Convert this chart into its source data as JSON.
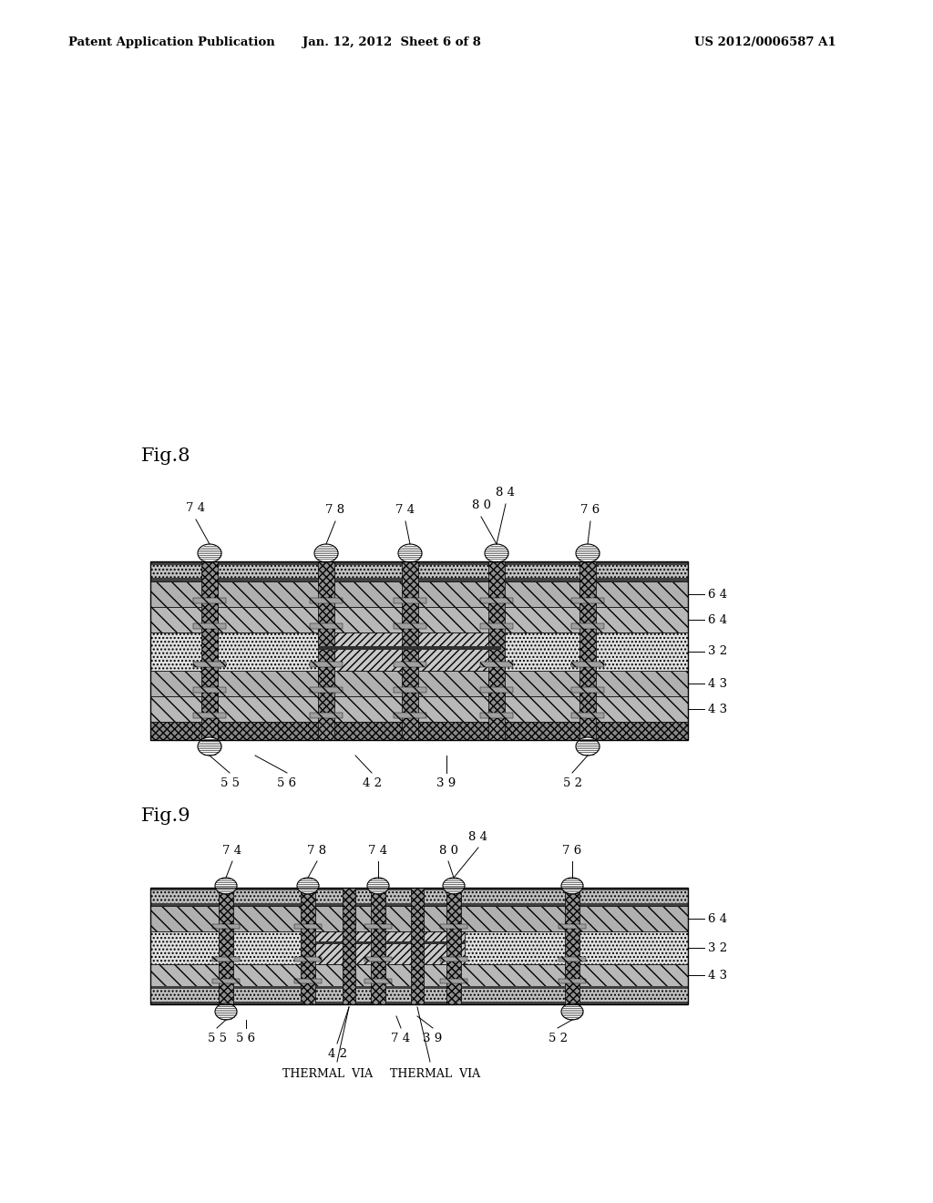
{
  "background_color": "#ffffff",
  "header_left": "Patent Application Publication",
  "header_center": "Jan. 12, 2012  Sheet 6 of 8",
  "header_right": "US 2012/0006587 A1",
  "fig8_label": "Fig.8",
  "fig9_label": "Fig.9"
}
